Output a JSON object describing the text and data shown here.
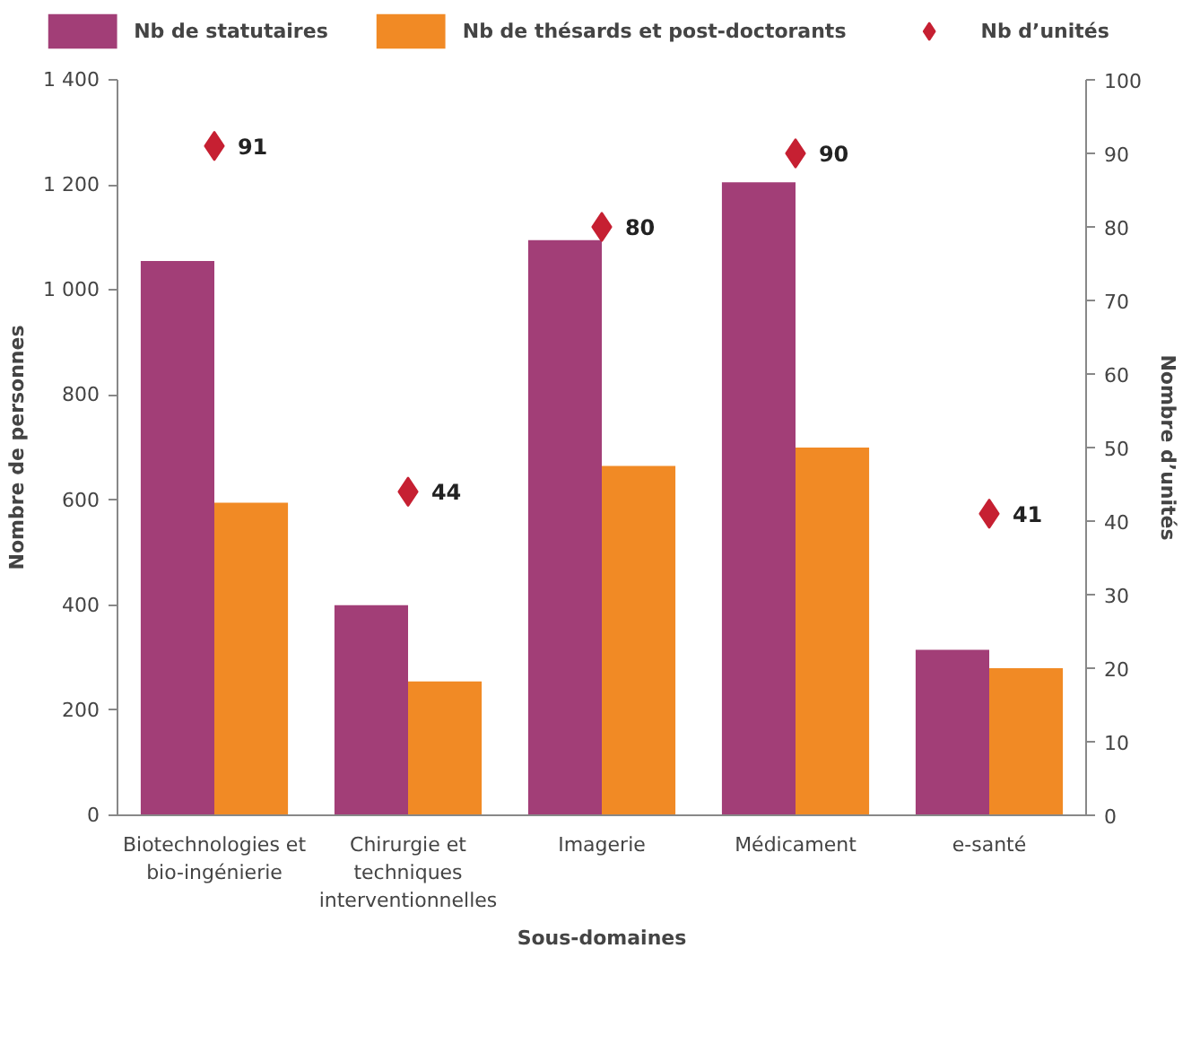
{
  "chart_data": {
    "type": "bar",
    "xlabel": "Sous-domaines",
    "ylabel": "Nombre de personnes",
    "y2label": "Nombre d’unités",
    "categories": [
      "Biotechnologies et bio-ingénierie",
      "Chirurgie et techniques interventionnelles",
      "Imagerie",
      "Médicament",
      "e-santé"
    ],
    "series": [
      {
        "name": "Nb de statutaires",
        "color": "#a23e77",
        "values": [
          1055,
          400,
          1095,
          1205,
          315
        ]
      },
      {
        "name": "Nb de thésards et post-doctorants",
        "color": "#f18a25",
        "values": [
          595,
          255,
          665,
          700,
          280
        ]
      },
      {
        "name": "Nb d’unités",
        "type": "scatter",
        "axis": "y2",
        "marker": "diamond",
        "color": "#c62032",
        "values": [
          91,
          44,
          80,
          90,
          41
        ],
        "value_labels": [
          "91",
          "44",
          "80",
          "90",
          "41"
        ]
      }
    ],
    "ylim": [
      0,
      1400
    ],
    "yticks": [
      0,
      200,
      400,
      600,
      800,
      {
        "value": 1000,
        "label": "1 000"
      },
      {
        "value": 1200,
        "label": "1 200"
      },
      {
        "value": 1400,
        "label": "1 400"
      }
    ],
    "y2lim": [
      0,
      100
    ],
    "y2ticks": [
      0,
      10,
      20,
      30,
      40,
      50,
      60,
      70,
      80,
      90,
      100
    ],
    "grid": false,
    "legend": "top"
  }
}
